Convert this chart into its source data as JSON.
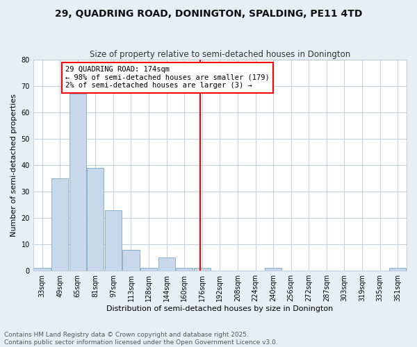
{
  "title1": "29, QUADRING ROAD, DONINGTON, SPALDING, PE11 4TD",
  "title2": "Size of property relative to semi-detached houses in Donington",
  "xlabel": "Distribution of semi-detached houses by size in Donington",
  "ylabel": "Number of semi-detached properties",
  "footnote": "Contains HM Land Registry data © Crown copyright and database right 2025.\nContains public sector information licensed under the Open Government Licence v3.0.",
  "bin_labels": [
    "33sqm",
    "49sqm",
    "65sqm",
    "81sqm",
    "97sqm",
    "113sqm",
    "128sqm",
    "144sqm",
    "160sqm",
    "176sqm",
    "192sqm",
    "208sqm",
    "224sqm",
    "240sqm",
    "256sqm",
    "272sqm",
    "287sqm",
    "303sqm",
    "319sqm",
    "335sqm",
    "351sqm"
  ],
  "bar_values": [
    1,
    35,
    67,
    39,
    23,
    8,
    1,
    5,
    1,
    1,
    0,
    0,
    0,
    1,
    0,
    0,
    0,
    0,
    0,
    0,
    1
  ],
  "bar_color": "#c8d8ea",
  "bar_edge_color": "#7aa8c8",
  "annotation_text": "29 QUADRING ROAD: 174sqm\n← 98% of semi-detached houses are smaller (179)\n2% of semi-detached houses are larger (3) →",
  "annotation_box_color": "white",
  "annotation_box_edge": "red",
  "vline_color": "red",
  "vline_x_index": 8.88,
  "ylim": [
    0,
    80
  ],
  "yticks": [
    0,
    10,
    20,
    30,
    40,
    50,
    60,
    70,
    80
  ],
  "bg_color": "#e8eef5",
  "plot_bg_color": "white",
  "grid_color": "#b8c8d8",
  "title1_fontsize": 10,
  "title2_fontsize": 8.5,
  "xlabel_fontsize": 8,
  "ylabel_fontsize": 8,
  "tick_fontsize": 7,
  "footnote_fontsize": 6.5,
  "annot_fontsize": 7.5
}
